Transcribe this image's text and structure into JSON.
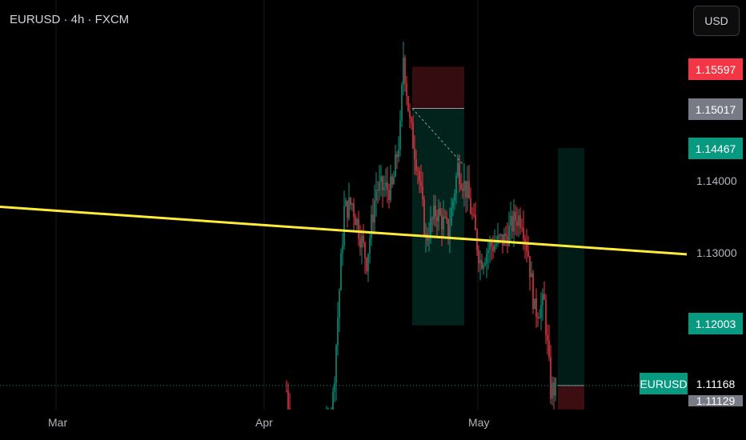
{
  "header": {
    "title": "EURUSD · 4h · FXCM",
    "currency": "USD"
  },
  "chart_data": {
    "type": "candlestick",
    "symbol": "EURUSD",
    "y_ticks": [
      "1.14000",
      "1.13000"
    ],
    "x_ticks": [
      "Mar",
      "Apr",
      "May"
    ],
    "ylim": [
      1.1113,
      1.1618
    ],
    "price_labels": [
      {
        "id": "stop-loss",
        "value": "1.15597",
        "color": "#f23645"
      },
      {
        "id": "entry",
        "value": "1.15017",
        "color": "#787b86"
      },
      {
        "id": "take-profit",
        "value": "1.14467",
        "color": "#089981"
      },
      {
        "id": "target-2",
        "value": "1.12003",
        "color": "#089981"
      },
      {
        "id": "last-price",
        "value": "1.11168",
        "color": "#089981"
      },
      {
        "id": "prev-close",
        "value": "1.11129",
        "color": "#787b86"
      }
    ],
    "symbol_badge": "EURUSD",
    "trend_line": {
      "color": "#ffeb3b",
      "from": {
        "date": "Feb 20",
        "price": 1.1365
      },
      "to": {
        "date": "May 16",
        "price": 1.1299
      }
    },
    "colors": {
      "up": "#089981",
      "down": "#f23645"
    }
  }
}
